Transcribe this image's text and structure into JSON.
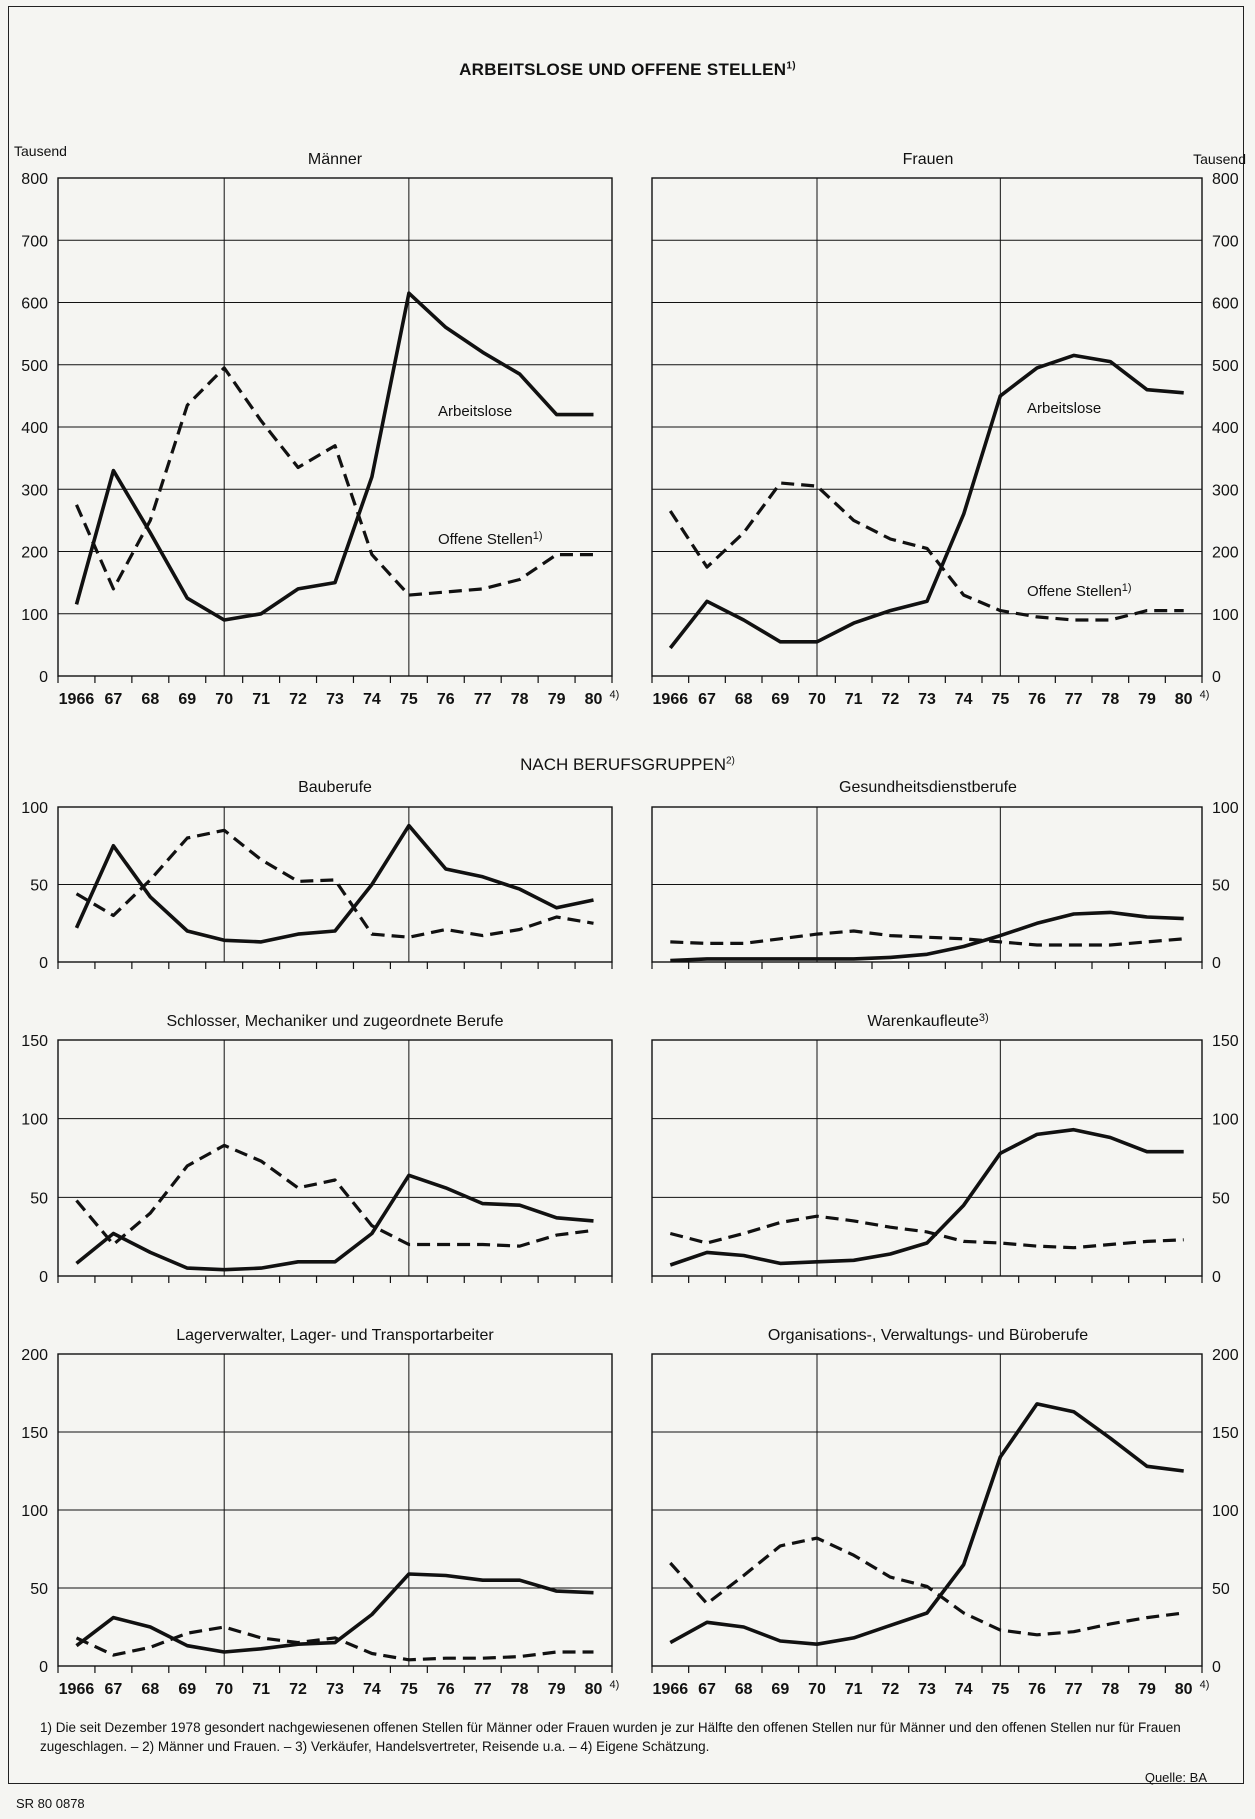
{
  "title": "ARBEITSLOSE UND OFFENE STELLEN",
  "title_note": "1)",
  "section_title": "NACH BERUFSGRUPPEN",
  "section_note": "2)",
  "footnote": "1) Die seit Dezember 1978 gesondert nachgewiesenen offenen Stellen für Männer oder Frauen wurden je zur Hälfte den offenen Stellen nur für Männer und den offenen Stellen nur für Frauen zugeschlagen. – 2) Männer und Frauen. – 3) Verkäufer, Handelsvertreter, Reisende u.a. – 4) Eigene Schätzung.",
  "source": "Quelle: BA",
  "reference": "SR 80 0878",
  "colors": {
    "line": "#111111",
    "grid": "#111111",
    "background": "#f5f5f2"
  },
  "chart_data": [
    {
      "type": "line",
      "title": "Männer",
      "unit_label": "Tausend",
      "x_labels": [
        "1966",
        "67",
        "68",
        "69",
        "70",
        "71",
        "72",
        "73",
        "74",
        "75",
        "76",
        "77",
        "78",
        "79",
        "80"
      ],
      "x_note": "4)",
      "ylim": [
        0,
        800
      ],
      "yticks": [
        0,
        100,
        200,
        300,
        400,
        500,
        600,
        700,
        800
      ],
      "axis_side": "left",
      "series": [
        {
          "name": "Arbeitslose",
          "style": "solid",
          "values": [
            115,
            330,
            230,
            125,
            90,
            100,
            140,
            150,
            320,
            615,
            560,
            520,
            485,
            420,
            420
          ]
        },
        {
          "name": "Offene Stellen",
          "name_note": "1)",
          "style": "dashed",
          "values": [
            275,
            140,
            250,
            435,
            495,
            410,
            335,
            370,
            195,
            130,
            135,
            140,
            155,
            195,
            195
          ]
        }
      ]
    },
    {
      "type": "line",
      "title": "Frauen",
      "unit_label": "Tausend",
      "x_labels": [
        "1966",
        "67",
        "68",
        "69",
        "70",
        "71",
        "72",
        "73",
        "74",
        "75",
        "76",
        "77",
        "78",
        "79",
        "80"
      ],
      "x_note": "4)",
      "ylim": [
        0,
        800
      ],
      "yticks": [
        0,
        100,
        200,
        300,
        400,
        500,
        600,
        700,
        800
      ],
      "axis_side": "right",
      "series": [
        {
          "name": "Arbeitslose",
          "style": "solid",
          "values": [
            45,
            120,
            90,
            55,
            55,
            85,
            105,
            120,
            260,
            450,
            495,
            515,
            505,
            460,
            455
          ]
        },
        {
          "name": "Offene Stellen",
          "name_note": "1)",
          "style": "dashed",
          "values": [
            265,
            175,
            230,
            310,
            305,
            250,
            220,
            205,
            130,
            105,
            95,
            90,
            90,
            105,
            105
          ]
        }
      ]
    },
    {
      "type": "line",
      "title": "Bauberufe",
      "ylim": [
        0,
        100
      ],
      "yticks": [
        0,
        50,
        100
      ],
      "axis_side": "left",
      "series": [
        {
          "style": "solid",
          "values": [
            22,
            75,
            42,
            20,
            14,
            13,
            18,
            20,
            50,
            88,
            60,
            55,
            47,
            35,
            40
          ]
        },
        {
          "style": "dashed",
          "values": [
            44,
            30,
            53,
            80,
            85,
            66,
            52,
            53,
            18,
            16,
            21,
            17,
            21,
            29,
            25
          ]
        }
      ]
    },
    {
      "type": "line",
      "title": "Gesundheitsdienstberufe",
      "ylim": [
        0,
        100
      ],
      "yticks": [
        0,
        50,
        100
      ],
      "axis_side": "right",
      "series": [
        {
          "style": "solid",
          "values": [
            1,
            2,
            2,
            2,
            2,
            2,
            3,
            5,
            10,
            17,
            25,
            31,
            32,
            29,
            28
          ]
        },
        {
          "style": "dashed",
          "values": [
            13,
            12,
            12,
            15,
            18,
            20,
            17,
            16,
            15,
            13,
            11,
            11,
            11,
            13,
            15
          ]
        }
      ]
    },
    {
      "type": "line",
      "title": "Schlosser, Mechaniker und zugeordnete Berufe",
      "ylim": [
        0,
        150
      ],
      "yticks": [
        0,
        50,
        100,
        150
      ],
      "axis_side": "left",
      "series": [
        {
          "style": "solid",
          "values": [
            8,
            27,
            15,
            5,
            4,
            5,
            9,
            9,
            27,
            64,
            56,
            46,
            45,
            37,
            35
          ]
        },
        {
          "style": "dashed",
          "values": [
            48,
            20,
            40,
            70,
            83,
            73,
            56,
            61,
            32,
            20,
            20,
            20,
            19,
            26,
            29
          ]
        }
      ]
    },
    {
      "type": "line",
      "title": "Warenkaufleute",
      "title_note": "3)",
      "ylim": [
        0,
        150
      ],
      "yticks": [
        0,
        50,
        100,
        150
      ],
      "axis_side": "right",
      "series": [
        {
          "style": "solid",
          "values": [
            7,
            15,
            13,
            8,
            9,
            10,
            14,
            21,
            45,
            78,
            90,
            93,
            88,
            79,
            79
          ]
        },
        {
          "style": "dashed",
          "values": [
            27,
            21,
            27,
            34,
            38,
            35,
            31,
            28,
            22,
            21,
            19,
            18,
            20,
            22,
            23
          ]
        }
      ]
    },
    {
      "type": "line",
      "title": "Lagerverwalter, Lager- und Transportarbeiter",
      "x_labels": [
        "1966",
        "67",
        "68",
        "69",
        "70",
        "71",
        "72",
        "73",
        "74",
        "75",
        "76",
        "77",
        "78",
        "79",
        "80"
      ],
      "x_note": "4)",
      "ylim": [
        0,
        200
      ],
      "yticks": [
        0,
        50,
        100,
        150,
        200
      ],
      "axis_side": "left",
      "series": [
        {
          "style": "solid",
          "values": [
            13,
            31,
            25,
            13,
            9,
            11,
            14,
            15,
            33,
            59,
            58,
            55,
            55,
            48,
            47
          ]
        },
        {
          "style": "dashed",
          "values": [
            18,
            7,
            12,
            21,
            25,
            18,
            15,
            18,
            8,
            4,
            5,
            5,
            6,
            9,
            9
          ]
        }
      ]
    },
    {
      "type": "line",
      "title": "Organisations-, Verwaltungs- und Büroberufe",
      "x_labels": [
        "1966",
        "67",
        "68",
        "69",
        "70",
        "71",
        "72",
        "73",
        "74",
        "75",
        "76",
        "77",
        "78",
        "79",
        "80"
      ],
      "x_note": "4)",
      "ylim": [
        0,
        200
      ],
      "yticks": [
        0,
        50,
        100,
        150,
        200
      ],
      "axis_side": "right",
      "series": [
        {
          "style": "solid",
          "values": [
            15,
            28,
            25,
            16,
            14,
            18,
            26,
            34,
            65,
            134,
            168,
            163,
            146,
            128,
            125
          ]
        },
        {
          "style": "dashed",
          "values": [
            66,
            40,
            58,
            77,
            82,
            71,
            57,
            51,
            34,
            23,
            20,
            22,
            27,
            31,
            34
          ]
        }
      ]
    }
  ]
}
